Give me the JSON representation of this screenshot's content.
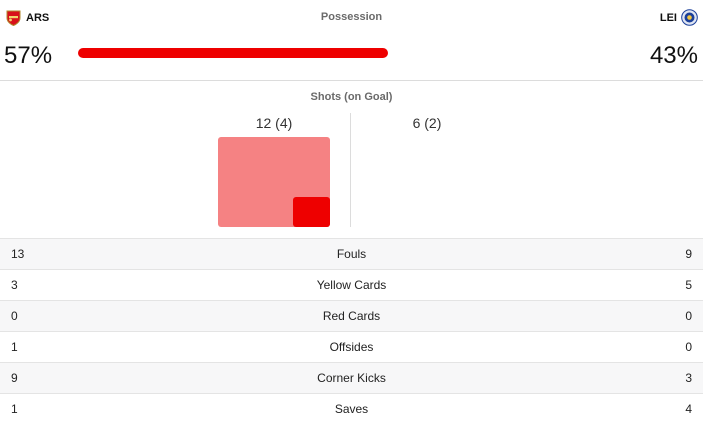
{
  "home": {
    "abbr": "ARS",
    "possession": "57%",
    "crest_icon": "arsenal-crest-icon",
    "color": "#ee0000"
  },
  "away": {
    "abbr": "LEI",
    "possession": "43%",
    "crest_icon": "leicester-crest-icon",
    "color": "#1a3f9a"
  },
  "possession": {
    "title": "Possession",
    "home_fraction": 0.57
  },
  "shots": {
    "title": "Shots (on Goal)",
    "home_label": "12 (4)",
    "away_label": "6 (2)",
    "home_total": 12,
    "home_on_goal": 4,
    "away_total": 6,
    "away_on_goal": 2,
    "colors": {
      "total": "#f58283",
      "on_goal": "#ee0000"
    }
  },
  "stats": [
    {
      "label": "Fouls",
      "home": "13",
      "away": "9"
    },
    {
      "label": "Yellow Cards",
      "home": "3",
      "away": "5"
    },
    {
      "label": "Red Cards",
      "home": "0",
      "away": "0"
    },
    {
      "label": "Offsides",
      "home": "1",
      "away": "0"
    },
    {
      "label": "Corner Kicks",
      "home": "9",
      "away": "3"
    },
    {
      "label": "Saves",
      "home": "1",
      "away": "4"
    }
  ]
}
